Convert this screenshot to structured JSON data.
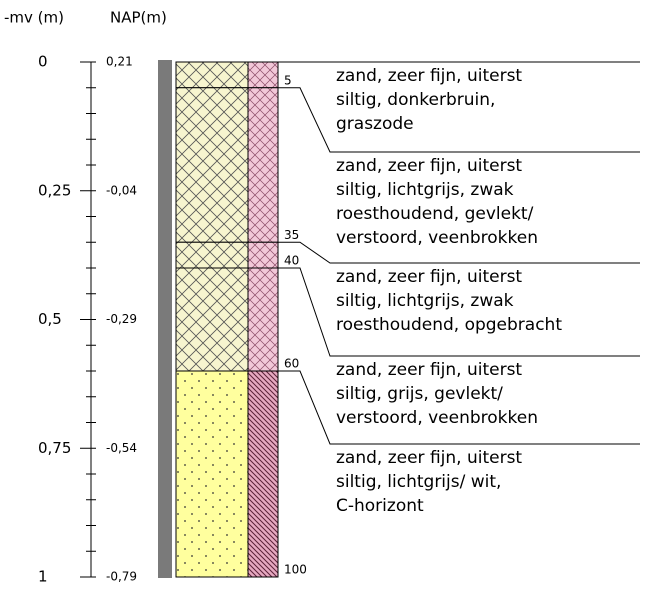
{
  "header": {
    "depth_title": "-mv (m)",
    "nap_title": "NAP(m)"
  },
  "depth_labels": [
    "0",
    "0,25",
    "0,5",
    "0,75",
    "1"
  ],
  "nap_labels": [
    "0,21",
    "-0,04",
    "-0,29",
    "-0,54",
    "-0,79"
  ],
  "layers": [
    {
      "bottom": 5,
      "description": [
        "zand, zeer fijn, uiterst",
        "siltig, donkerbruin,",
        "graszode"
      ]
    },
    {
      "bottom": 35,
      "description": [
        "zand, zeer fijn, uiterst",
        "siltig, lichtgrijs, zwak",
        "roesthoudend, gevlekt/",
        "verstoord, veenbrokken"
      ]
    },
    {
      "bottom": 40,
      "description": [
        "zand, zeer fijn, uiterst",
        "siltig, lichtgrijs, zwak",
        "roesthoudend, opgebracht"
      ]
    },
    {
      "bottom": 60,
      "description": [
        "zand, zeer fijn, uiterst",
        "siltig, grijs, gevlekt/",
        "verstoord, veenbrokken"
      ]
    },
    {
      "bottom": 100,
      "description": [
        "zand, zeer fijn, uiterst",
        "siltig, lichtgrijs/ wit,",
        "C-horizont"
      ]
    }
  ]
}
